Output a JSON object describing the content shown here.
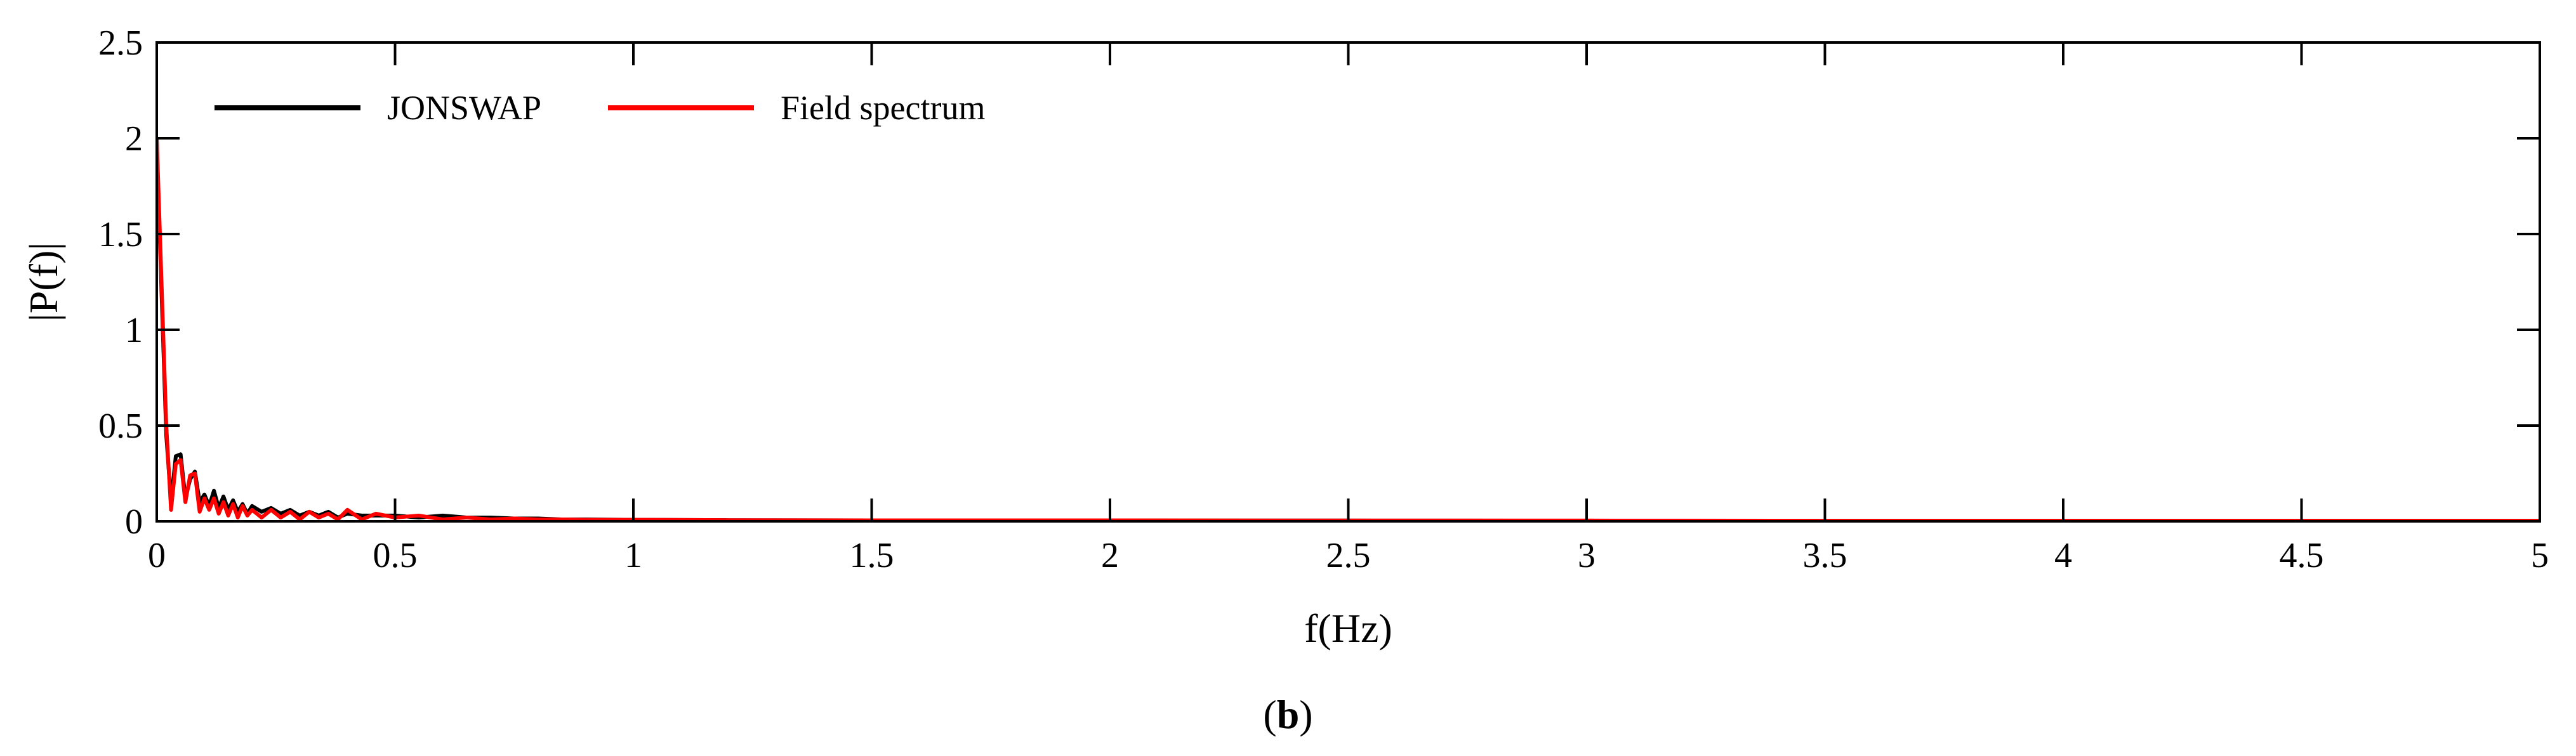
{
  "chart_data": {
    "type": "line",
    "title": "",
    "xlabel": "f(Hz)",
    "ylabel": "|P(f)|",
    "xlim": [
      0,
      5
    ],
    "ylim": [
      0,
      2.5
    ],
    "xticks": [
      0,
      0.5,
      1,
      1.5,
      2,
      2.5,
      3,
      3.5,
      4,
      4.5,
      5
    ],
    "xtick_labels": [
      "0",
      "0.5",
      "1",
      "1.5",
      "2",
      "2.5",
      "3",
      "3.5",
      "4",
      "4.5",
      "5"
    ],
    "yticks": [
      0,
      0.5,
      1,
      1.5,
      2,
      2.5
    ],
    "ytick_labels": [
      "0",
      "0.5",
      "1",
      "1.5",
      "2",
      "2.5"
    ],
    "grid": false,
    "legend_position": "top-left",
    "series": [
      {
        "name": "JONSWAP",
        "color": "#000000",
        "x": [
          0,
          0.01,
          0.02,
          0.03,
          0.04,
          0.05,
          0.06,
          0.07,
          0.08,
          0.09,
          0.1,
          0.11,
          0.12,
          0.13,
          0.14,
          0.15,
          0.16,
          0.17,
          0.18,
          0.19,
          0.2,
          0.22,
          0.24,
          0.26,
          0.28,
          0.3,
          0.32,
          0.34,
          0.36,
          0.38,
          0.4,
          0.43,
          0.46,
          0.5,
          0.55,
          0.6,
          0.65,
          0.7,
          0.75,
          0.8,
          0.85,
          0.9,
          1.0,
          1.2,
          1.5,
          2.0,
          2.5,
          3.0,
          3.5,
          4.0,
          4.5,
          5.0
        ],
        "y": [
          1.98,
          1.2,
          0.45,
          0.1,
          0.34,
          0.35,
          0.12,
          0.22,
          0.26,
          0.1,
          0.14,
          0.08,
          0.16,
          0.07,
          0.13,
          0.06,
          0.11,
          0.05,
          0.09,
          0.04,
          0.08,
          0.05,
          0.07,
          0.04,
          0.06,
          0.03,
          0.05,
          0.03,
          0.05,
          0.02,
          0.04,
          0.03,
          0.03,
          0.03,
          0.02,
          0.03,
          0.02,
          0.02,
          0.015,
          0.015,
          0.01,
          0.01,
          0.008,
          0.006,
          0.005,
          0.004,
          0.004,
          0.003,
          0.003,
          0.003,
          0.003,
          0.003
        ]
      },
      {
        "name": "Field spectrum",
        "color": "#ff0000",
        "x": [
          0,
          0.01,
          0.02,
          0.03,
          0.04,
          0.05,
          0.06,
          0.07,
          0.08,
          0.09,
          0.1,
          0.11,
          0.12,
          0.13,
          0.14,
          0.15,
          0.16,
          0.17,
          0.18,
          0.19,
          0.2,
          0.22,
          0.24,
          0.26,
          0.28,
          0.3,
          0.32,
          0.34,
          0.36,
          0.38,
          0.4,
          0.43,
          0.46,
          0.5,
          0.55,
          0.6,
          0.65,
          0.7,
          0.75,
          0.8,
          0.85,
          0.9,
          1.0,
          1.2,
          1.5,
          2.0,
          2.5,
          3.0,
          3.5,
          4.0,
          4.5,
          5.0
        ],
        "y": [
          2.0,
          1.25,
          0.5,
          0.06,
          0.3,
          0.32,
          0.1,
          0.24,
          0.25,
          0.05,
          0.12,
          0.06,
          0.12,
          0.04,
          0.1,
          0.03,
          0.09,
          0.02,
          0.08,
          0.03,
          0.06,
          0.02,
          0.06,
          0.02,
          0.05,
          0.01,
          0.05,
          0.02,
          0.04,
          0.01,
          0.06,
          0.01,
          0.04,
          0.02,
          0.03,
          0.01,
          0.02,
          0.01,
          0.015,
          0.01,
          0.01,
          0.008,
          0.008,
          0.006,
          0.005,
          0.005,
          0.004,
          0.004,
          0.003,
          0.003,
          0.003,
          0.003
        ]
      }
    ]
  },
  "panel_label": "b"
}
